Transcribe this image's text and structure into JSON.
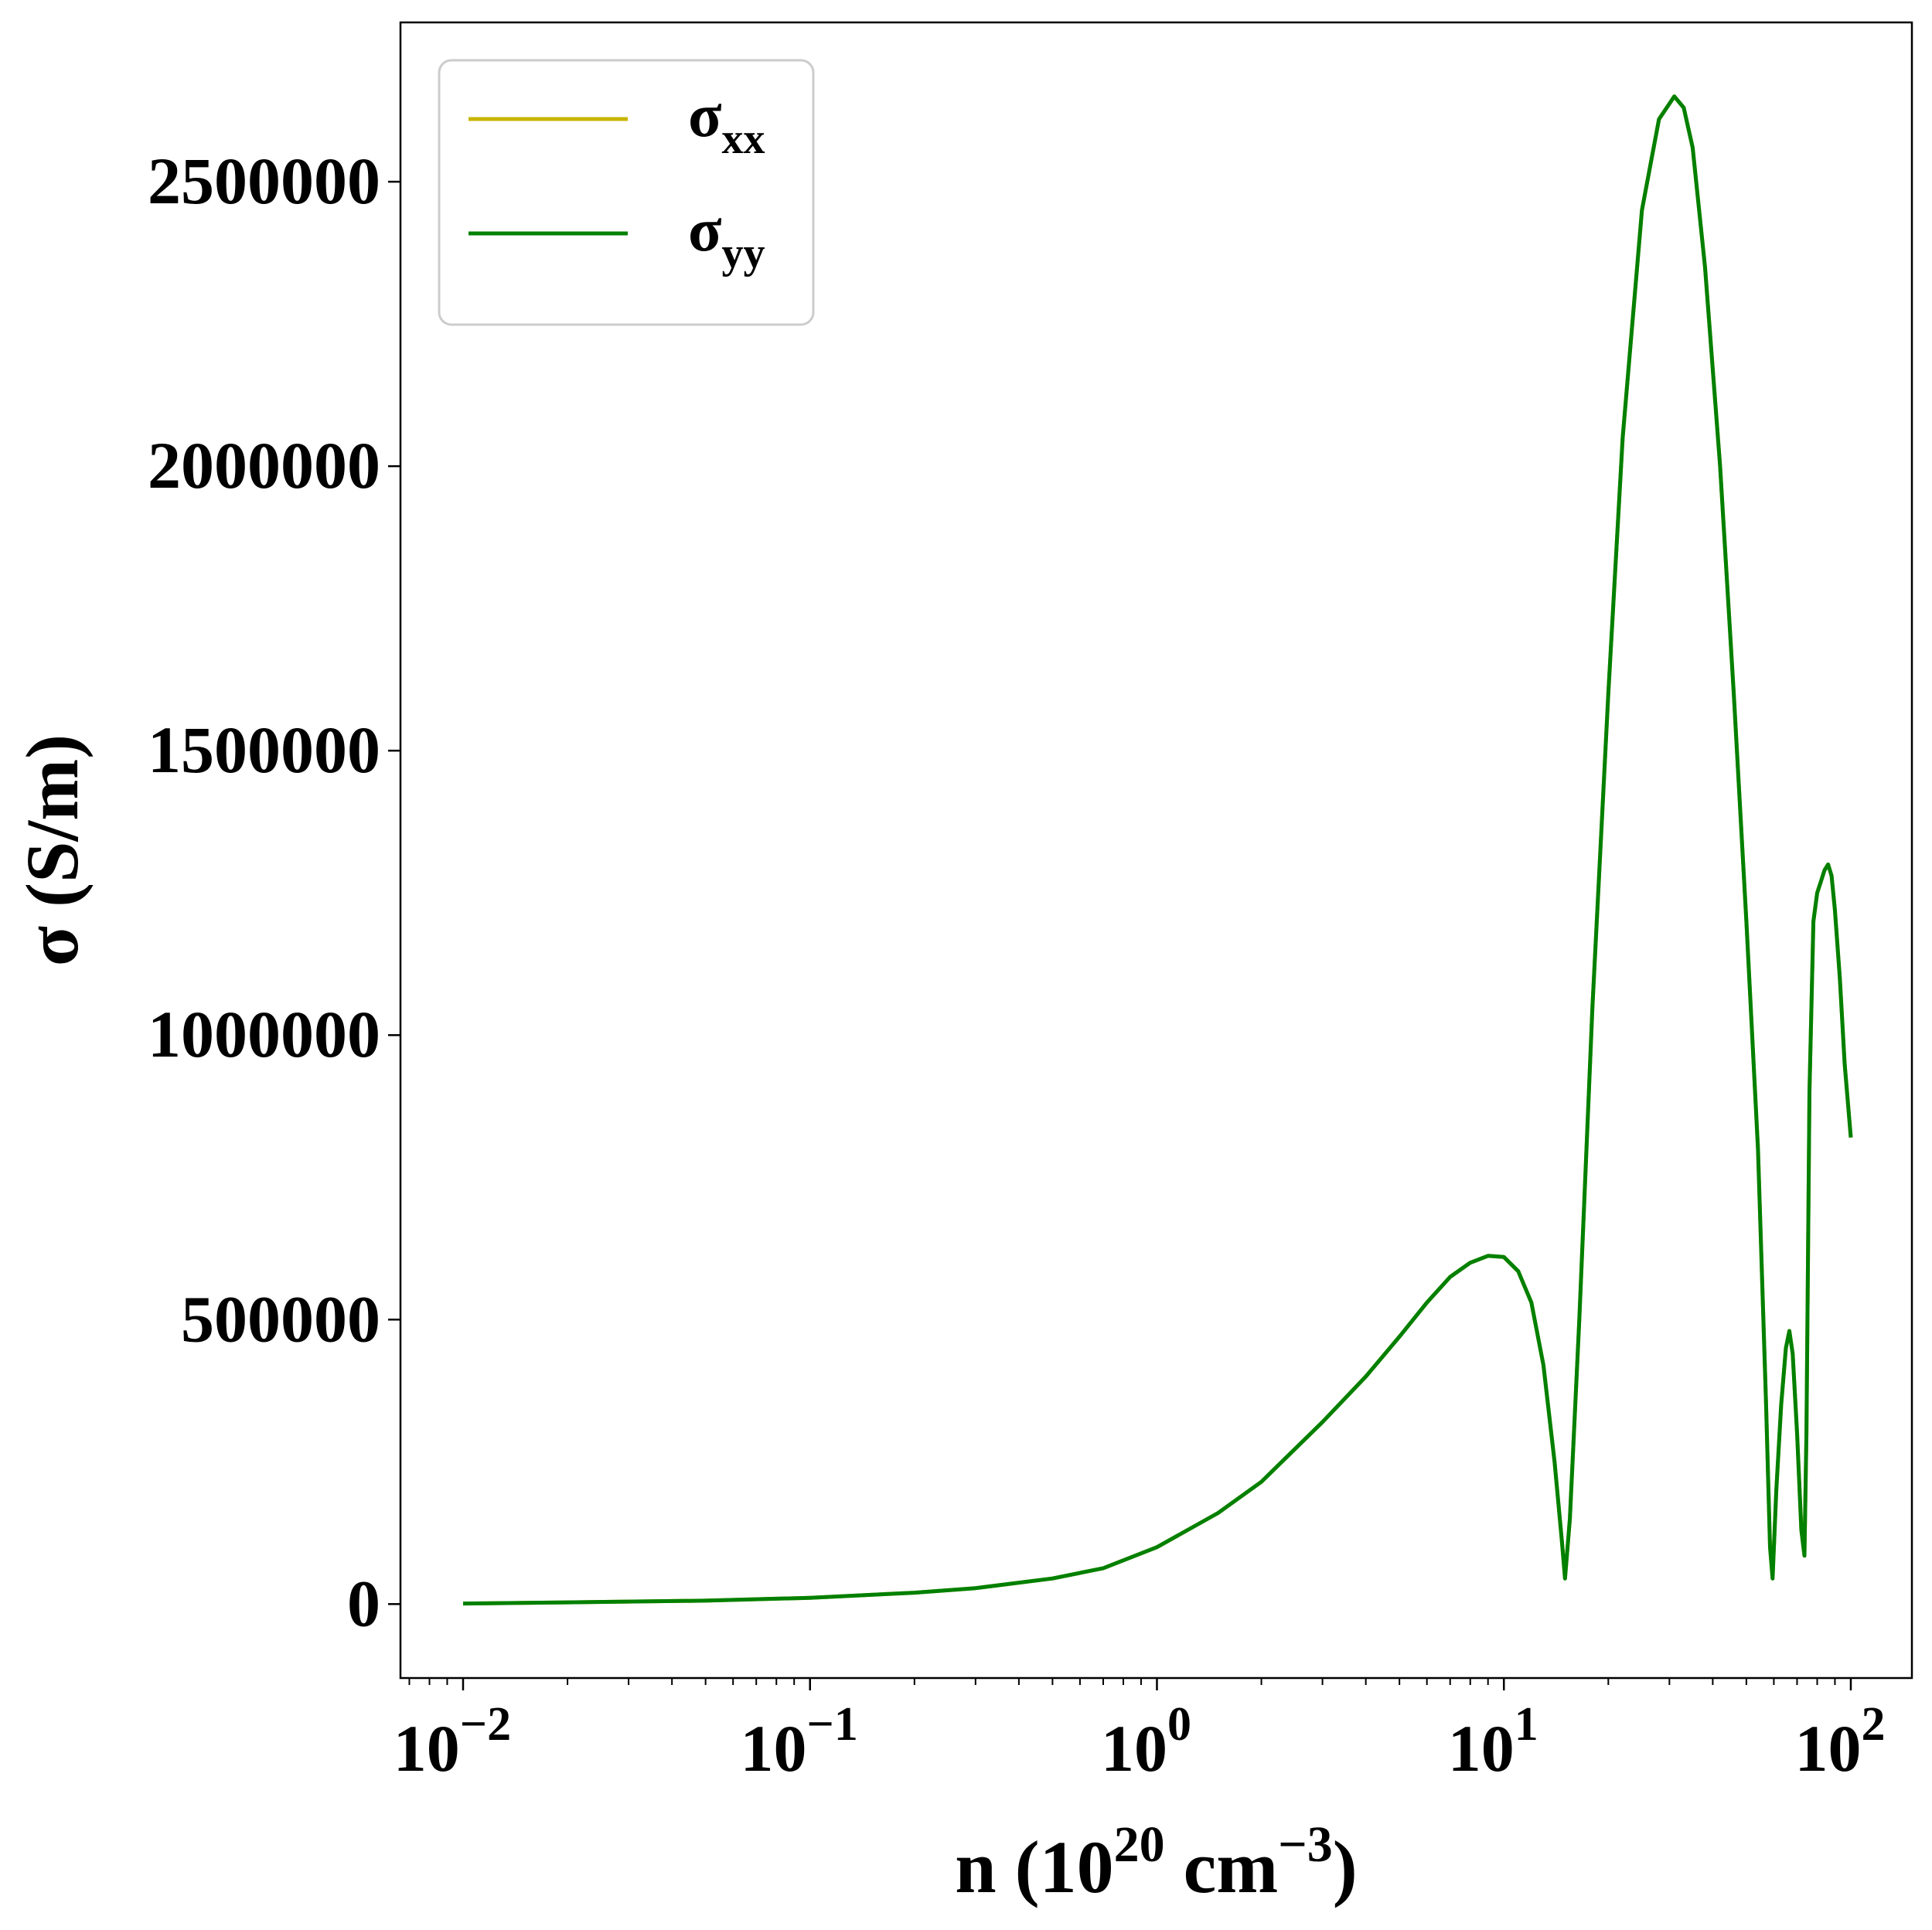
{
  "chart_data": {
    "type": "line",
    "xscale": "log",
    "xlim": [
      0.0066,
      150
    ],
    "ylim": [
      -130000,
      2780000
    ],
    "x_ticks": [
      {
        "value": 0.01,
        "base": "10",
        "exp": "−2"
      },
      {
        "value": 0.1,
        "base": "10",
        "exp": "−1"
      },
      {
        "value": 1,
        "base": "10",
        "exp": "0"
      },
      {
        "value": 10,
        "base": "10",
        "exp": "1"
      },
      {
        "value": 100,
        "base": "10",
        "exp": "2"
      }
    ],
    "y_ticks": [
      {
        "value": 0,
        "label": "0"
      },
      {
        "value": 500000,
        "label": "500000"
      },
      {
        "value": 1000000,
        "label": "1000000"
      },
      {
        "value": 1500000,
        "label": "1500000"
      },
      {
        "value": 2000000,
        "label": "2000000"
      },
      {
        "value": 2500000,
        "label": "2500000"
      }
    ],
    "xlabel": {
      "main": "n (10",
      "sup1": "20",
      "mid": " cm",
      "sup2": "−3",
      "end": ")"
    },
    "ylabel": "σ (S/m)",
    "grid": false,
    "legend": {
      "placement": "top-left",
      "entries": [
        {
          "symbol": "σ",
          "sub": "xx",
          "color": "#c8b400"
        },
        {
          "symbol": "σ",
          "sub": "yy",
          "color": "#008000"
        }
      ]
    },
    "series": [
      {
        "name": "σxx",
        "color": "#c8b400",
        "x": [
          0.01,
          0.02,
          0.05,
          0.1,
          0.2,
          0.3,
          0.5,
          0.7,
          1.0,
          1.5,
          2.0,
          3.0,
          4.0,
          5.0,
          6.0,
          7.0,
          8.0,
          9.0,
          10.0,
          11.0,
          12.0,
          13.0,
          14.0,
          14.7,
          15.0,
          15.5,
          16.5,
          18.0,
          20.0,
          22.0,
          25.0,
          28.0,
          31.0,
          33.0,
          35.0,
          38.0,
          42.0,
          46.0,
          50.0,
          54.0,
          57.0,
          58.5,
          59.5,
          61.0,
          63.0,
          65.0,
          66.5,
          68.0,
          70.0,
          72.0,
          73.5,
          74.5,
          76.0,
          78.0,
          80.0,
          82.0,
          84.0,
          86.0,
          88.0,
          90.0,
          93.0,
          96.0,
          100.0
        ],
        "y": [
          1000,
          3000,
          6000,
          11000,
          20000,
          28000,
          45000,
          63000,
          100000,
          160000,
          215000,
          320000,
          400000,
          470000,
          530000,
          575000,
          600000,
          612000,
          610000,
          585000,
          530000,
          420000,
          250000,
          110000,
          45000,
          150000,
          500000,
          1050000,
          1600000,
          2050000,
          2450000,
          2610000,
          2650000,
          2630000,
          2560000,
          2350000,
          2000000,
          1600000,
          1200000,
          800000,
          350000,
          100000,
          45000,
          200000,
          350000,
          450000,
          480000,
          440000,
          300000,
          130000,
          85000,
          300000,
          900000,
          1200000,
          1250000,
          1270000,
          1290000,
          1300000,
          1280000,
          1220000,
          1100000,
          950000,
          820000
        ]
      },
      {
        "name": "σyy",
        "color": "#008000",
        "x": [
          0.01,
          0.02,
          0.05,
          0.1,
          0.2,
          0.3,
          0.5,
          0.7,
          1.0,
          1.5,
          2.0,
          3.0,
          4.0,
          5.0,
          6.0,
          7.0,
          8.0,
          9.0,
          10.0,
          11.0,
          12.0,
          13.0,
          14.0,
          14.7,
          15.0,
          15.5,
          16.5,
          18.0,
          20.0,
          22.0,
          25.0,
          28.0,
          31.0,
          33.0,
          35.0,
          38.0,
          42.0,
          46.0,
          50.0,
          54.0,
          57.0,
          58.5,
          59.5,
          61.0,
          63.0,
          65.0,
          66.5,
          68.0,
          70.0,
          72.0,
          73.5,
          74.5,
          76.0,
          78.0,
          80.0,
          82.0,
          84.0,
          86.0,
          88.0,
          90.0,
          93.0,
          96.0,
          100.0
        ],
        "y": [
          1000,
          3000,
          6000,
          11000,
          20000,
          28000,
          45000,
          63000,
          100000,
          160000,
          215000,
          320000,
          400000,
          470000,
          530000,
          575000,
          600000,
          612000,
          610000,
          585000,
          530000,
          420000,
          250000,
          110000,
          45000,
          150000,
          500000,
          1050000,
          1600000,
          2050000,
          2450000,
          2610000,
          2650000,
          2630000,
          2560000,
          2350000,
          2000000,
          1600000,
          1200000,
          800000,
          350000,
          100000,
          45000,
          200000,
          350000,
          450000,
          480000,
          440000,
          300000,
          130000,
          85000,
          300000,
          900000,
          1200000,
          1250000,
          1270000,
          1290000,
          1300000,
          1280000,
          1220000,
          1100000,
          950000,
          820000
        ]
      }
    ]
  }
}
